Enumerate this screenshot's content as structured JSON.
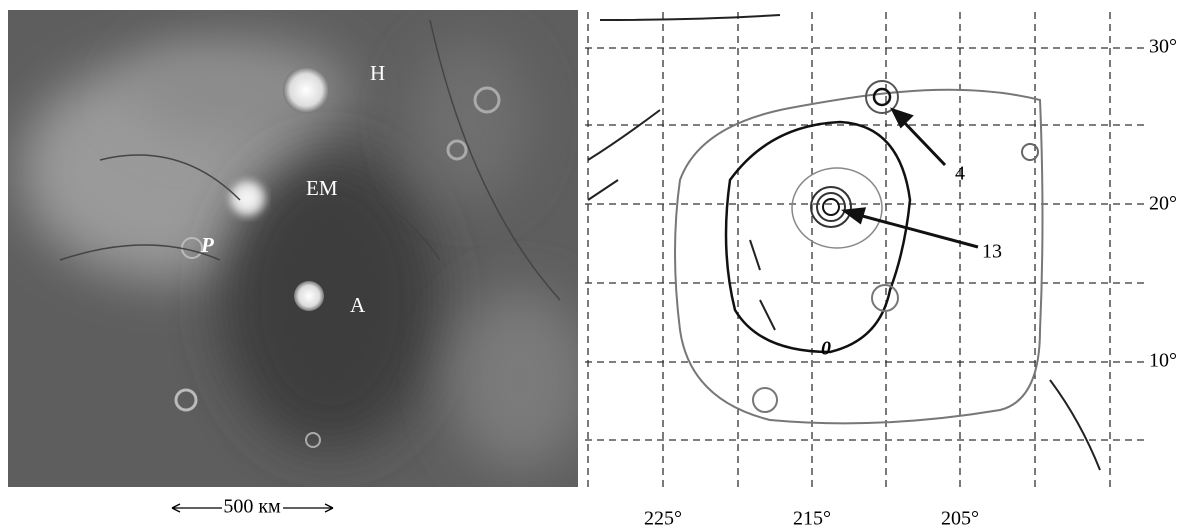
{
  "left_panel": {
    "labels": [
      "H",
      "EM",
      "P",
      "A"
    ],
    "scale_bar": "500 км"
  },
  "right_panel": {
    "contour_labels": [
      "4",
      "13",
      "0"
    ],
    "latitude_ticks": [
      "30°",
      "20°",
      "10°"
    ],
    "longitude_ticks": [
      "225°",
      "215°",
      "205°"
    ]
  }
}
